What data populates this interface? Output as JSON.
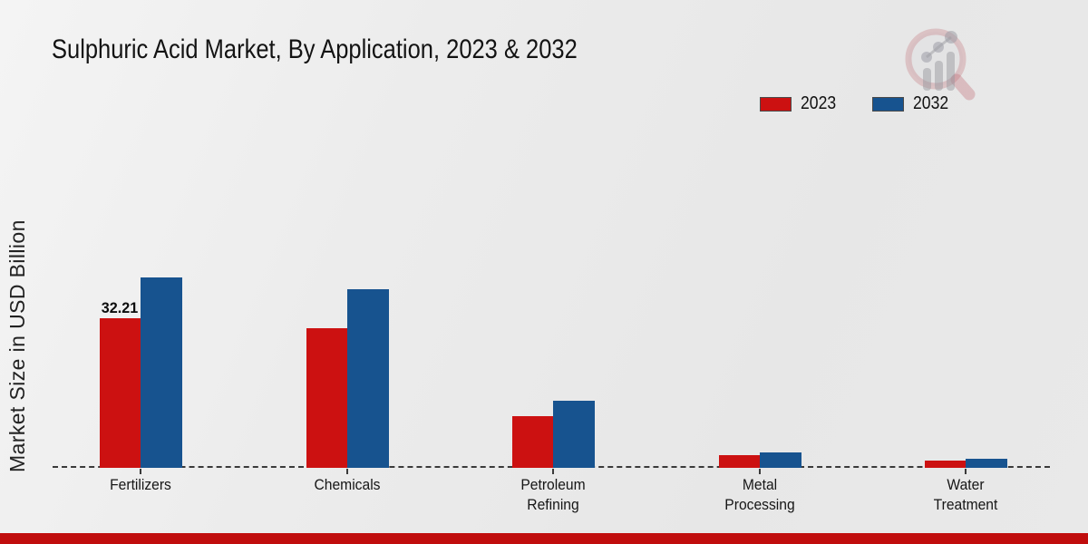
{
  "header": {
    "title": "Sulphuric Acid Market, By Application, 2023 & 2032"
  },
  "y_axis": {
    "label": "Market Size in USD Billion"
  },
  "legend": {
    "items": [
      {
        "label": "2023",
        "color": "#cc1111"
      },
      {
        "label": "2032",
        "color": "#17538f"
      }
    ]
  },
  "chart_data": {
    "type": "bar",
    "title": "Sulphuric Acid Market, By Application, 2023 & 2032",
    "categories": [
      "Fertilizers",
      "Chemicals",
      "Petroleum Refining",
      "Metal Processing",
      "Water Treatment"
    ],
    "series": [
      {
        "name": "2023",
        "color": "#cc1111",
        "values": [
          32.21,
          30.1,
          11.2,
          2.7,
          1.6
        ]
      },
      {
        "name": "2032",
        "color": "#17538f",
        "values": [
          41.0,
          38.4,
          14.5,
          3.3,
          2.0
        ]
      }
    ],
    "xlabel": "",
    "ylabel": "Market Size in USD Billion",
    "ylim": [
      0,
      45
    ],
    "grid": false,
    "legend_position": "top-right",
    "baseline_style": "dashed",
    "data_labels": [
      {
        "category": "Fertilizers",
        "series": "2023",
        "text": "32.21"
      }
    ]
  },
  "watermark": {
    "name": "magnifier-bar-chart-logo"
  },
  "footer": {
    "accent_color": "#c00d0d"
  }
}
